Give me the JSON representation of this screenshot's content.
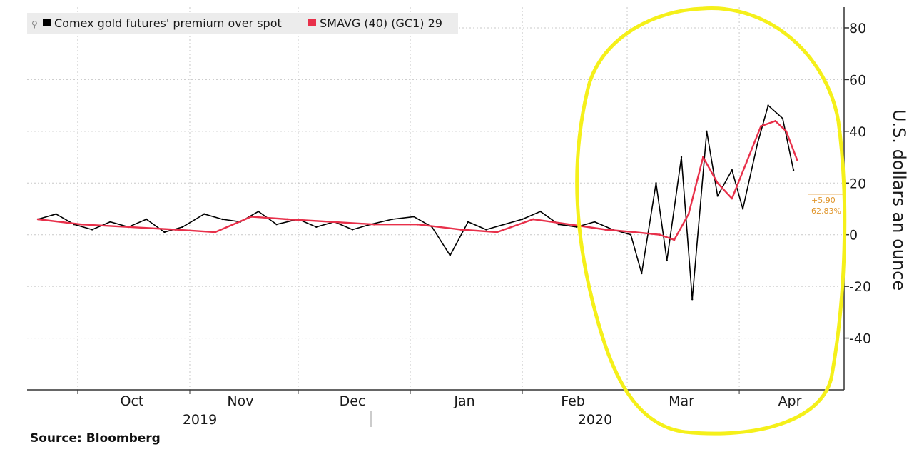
{
  "chart_data": {
    "type": "line",
    "ylabel": "U.S. dollars an ounce",
    "ylim": [
      -60,
      88
    ],
    "y_ticks": [
      80,
      60,
      40,
      20,
      0,
      -20,
      -40
    ],
    "grid": true,
    "legend_placement": "top-left",
    "months": [
      "Oct",
      "Nov",
      "Dec",
      "Jan",
      "Feb",
      "Mar",
      "Apr"
    ],
    "years": [
      "2019",
      "2020"
    ],
    "source": "Source: Bloomberg",
    "series": [
      {
        "name": "Comex gold futures' premium over spot",
        "color": "#000000",
        "x": [
          "2019-09-20",
          "2019-09-25",
          "2019-09-30",
          "2019-10-05",
          "2019-10-10",
          "2019-10-15",
          "2019-10-20",
          "2019-10-25",
          "2019-10-30",
          "2019-11-05",
          "2019-11-10",
          "2019-11-15",
          "2019-11-20",
          "2019-11-25",
          "2019-12-01",
          "2019-12-06",
          "2019-12-11",
          "2019-12-16",
          "2019-12-21",
          "2019-12-27",
          "2020-01-02",
          "2020-01-07",
          "2020-01-12",
          "2020-01-17",
          "2020-01-22",
          "2020-01-27",
          "2020-02-01",
          "2020-02-06",
          "2020-02-11",
          "2020-02-16",
          "2020-02-21",
          "2020-02-26",
          "2020-03-02",
          "2020-03-05",
          "2020-03-09",
          "2020-03-12",
          "2020-03-16",
          "2020-03-19",
          "2020-03-23",
          "2020-03-26",
          "2020-03-30",
          "2020-04-02",
          "2020-04-06",
          "2020-04-09",
          "2020-04-13",
          "2020-04-16"
        ],
        "y": [
          6,
          8,
          4,
          2,
          5,
          3,
          6,
          1,
          3,
          8,
          6,
          5,
          9,
          4,
          6,
          3,
          5,
          2,
          4,
          6,
          7,
          3,
          -8,
          5,
          2,
          4,
          6,
          9,
          4,
          3,
          5,
          2,
          0,
          -15,
          20,
          -10,
          30,
          -25,
          40,
          15,
          25,
          10,
          35,
          50,
          45,
          25
        ]
      },
      {
        "name": "SMAVG (40) (GC1) 29",
        "color": "#e8304a",
        "x": [
          "2019-09-20",
          "2019-10-02",
          "2019-10-15",
          "2019-10-28",
          "2019-11-08",
          "2019-11-18",
          "2019-11-28",
          "2019-12-10",
          "2019-12-22",
          "2020-01-03",
          "2020-01-15",
          "2020-01-25",
          "2020-02-04",
          "2020-02-14",
          "2020-02-24",
          "2020-03-03",
          "2020-03-10",
          "2020-03-14",
          "2020-03-18",
          "2020-03-22",
          "2020-03-26",
          "2020-03-30",
          "2020-04-03",
          "2020-04-07",
          "2020-04-11",
          "2020-04-14",
          "2020-04-17"
        ],
        "y": [
          6,
          4,
          3,
          2,
          1,
          7,
          6,
          5,
          4,
          4,
          2,
          1,
          6,
          4,
          2,
          1,
          0,
          -2,
          8,
          30,
          20,
          14,
          28,
          42,
          44,
          40,
          29
        ]
      }
    ],
    "last_value": {
      "change": "+5.90",
      "percent": "62.83%",
      "y": 15.7
    }
  }
}
